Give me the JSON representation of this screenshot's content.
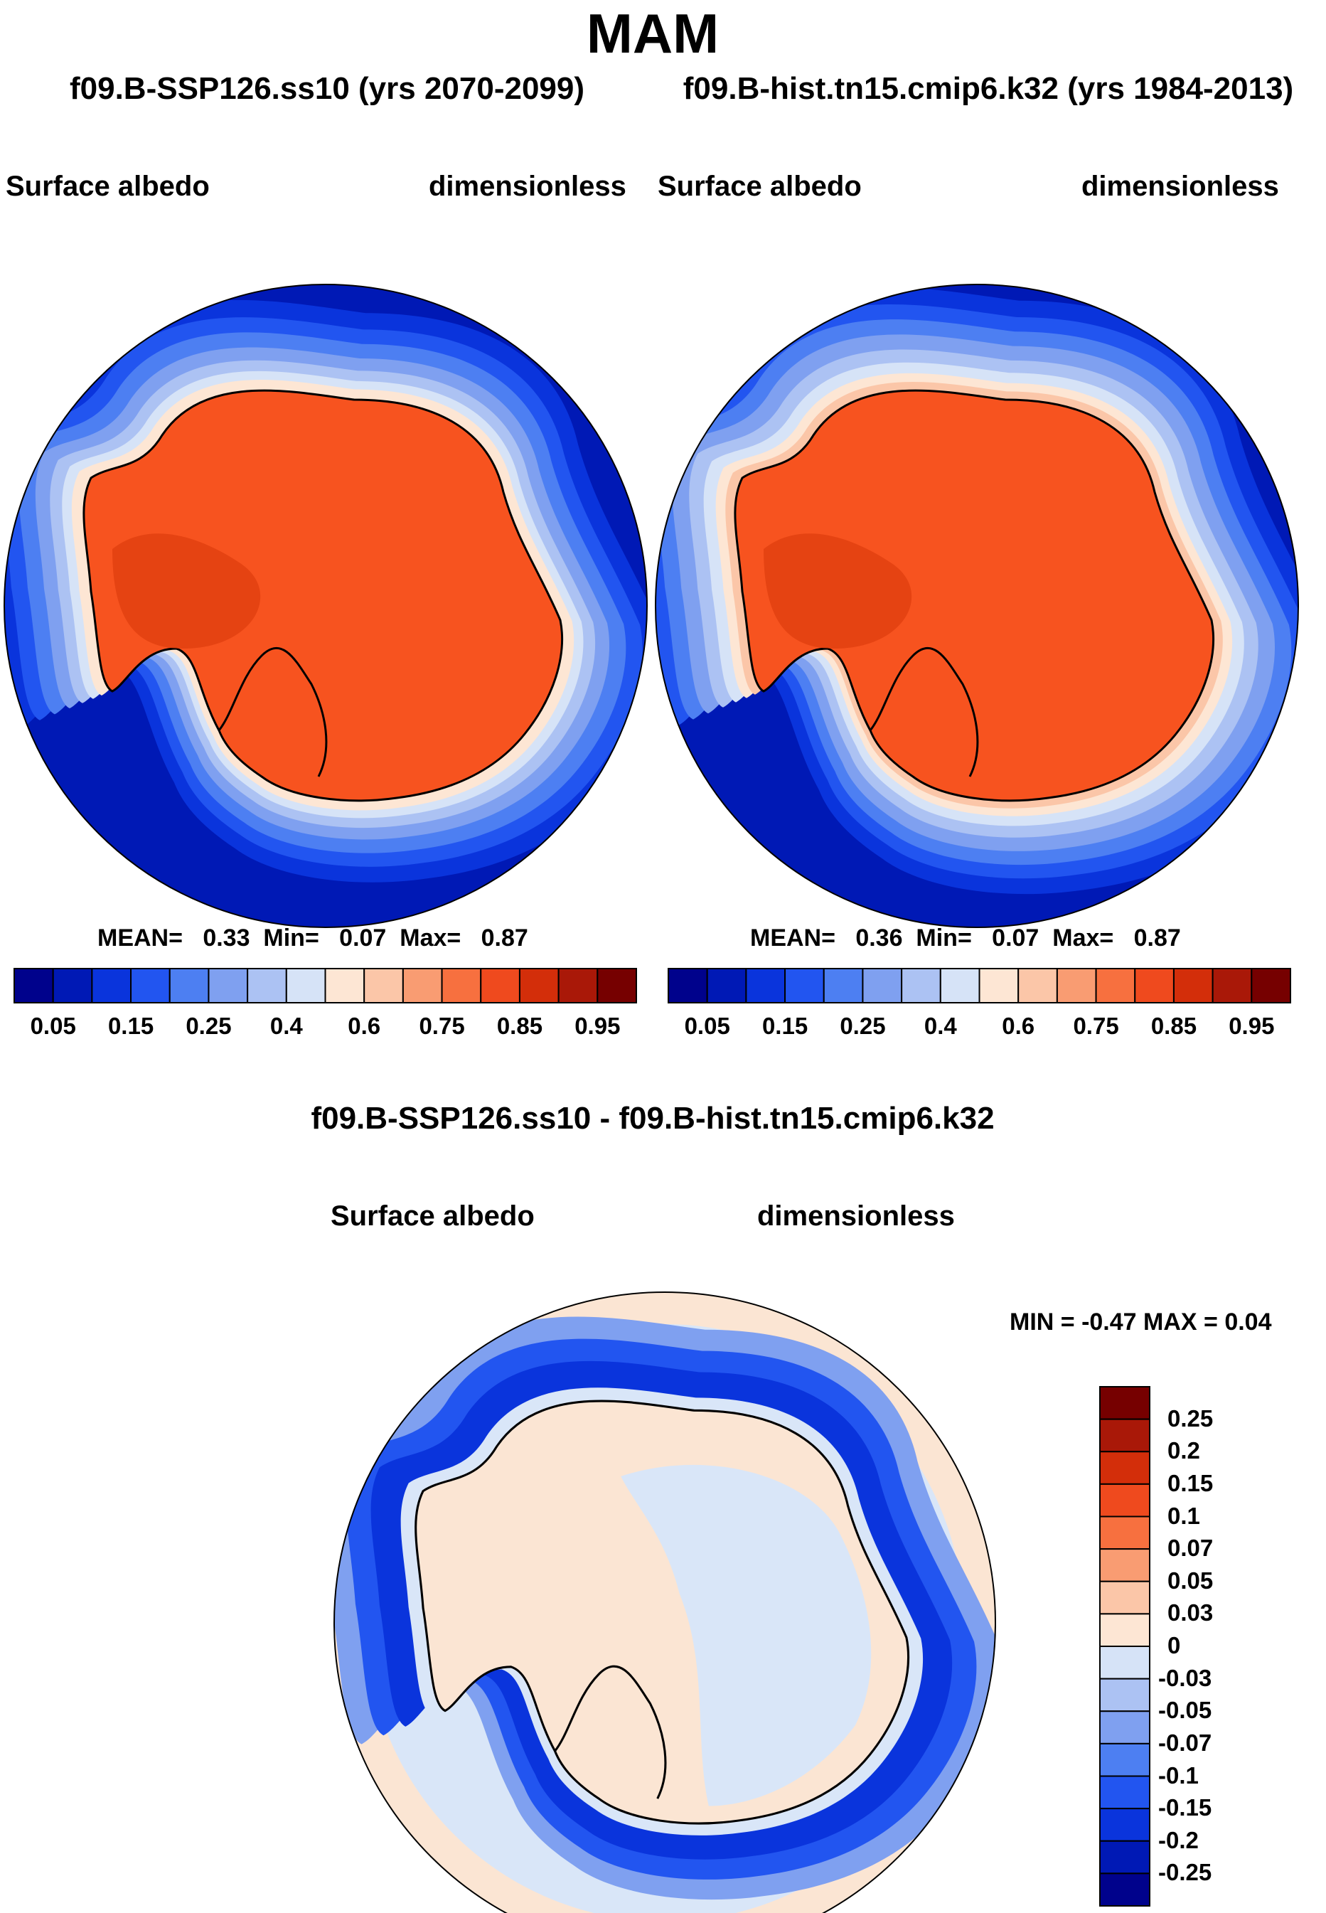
{
  "header": {
    "season": "MAM",
    "subtitle_left": "f09.B-SSP126.ss10 (yrs 2070-2099)",
    "subtitle_right": "f09.B-hist.tn15.cmip6.k32 (yrs 1984-2013)"
  },
  "panels": [
    {
      "variable": "Surface albedo",
      "units": "dimensionless",
      "stats": {
        "mean_label": "MEAN=",
        "mean": "0.33",
        "min_label": "Min=",
        "min": "0.07",
        "max_label": "Max=",
        "max": "0.87"
      }
    },
    {
      "variable": "Surface albedo",
      "units": "dimensionless",
      "stats": {
        "mean_label": "MEAN=",
        "mean": "0.36",
        "min_label": "Min=",
        "min": "0.07",
        "max_label": "Max=",
        "max": "0.87"
      }
    }
  ],
  "top_colorbar": {
    "colors": [
      "#00028c",
      "#0019b5",
      "#0a34dc",
      "#2255f0",
      "#4d7ff2",
      "#7fa0f0",
      "#acc2f3",
      "#d6e3f7",
      "#fde6d4",
      "#fbc6a8",
      "#f99c72",
      "#f7703f",
      "#ef4a1e",
      "#d32e0a",
      "#a91808",
      "#760000"
    ],
    "labels": [
      "0.05",
      "0.15",
      "0.25",
      "0.4",
      "0.6",
      "0.75",
      "0.85",
      "0.95"
    ]
  },
  "diff": {
    "title": "f09.B-SSP126.ss10 - f09.B-hist.tn15.cmip6.k32",
    "variable": "Surface albedo",
    "units": "dimensionless",
    "minmax_text": "MIN =  -0.47 MAX =   0.04"
  },
  "diff_colorbar": {
    "colors": [
      "#760000",
      "#a91808",
      "#d32e0a",
      "#ef4a1e",
      "#f7703f",
      "#f99c72",
      "#fbc6a8",
      "#fde6d4",
      "#d6e3f7",
      "#acc2f3",
      "#7fa0f0",
      "#4d7ff2",
      "#2255f0",
      "#0a34dc",
      "#0019b5",
      "#00028c"
    ],
    "labels": [
      "0.25",
      "0.2",
      "0.15",
      "0.1",
      "0.07",
      "0.05",
      "0.03",
      "0",
      "-0.03",
      "-0.05",
      "-0.07",
      "-0.1",
      "-0.15",
      "-0.2",
      "-0.25"
    ]
  },
  "colors": {
    "ocean_deep": "#0019b5",
    "ice_orange": "#f7531f",
    "diff_neutral_ocean": "#d9e6f8",
    "diff_land": "#fbe5d3"
  }
}
